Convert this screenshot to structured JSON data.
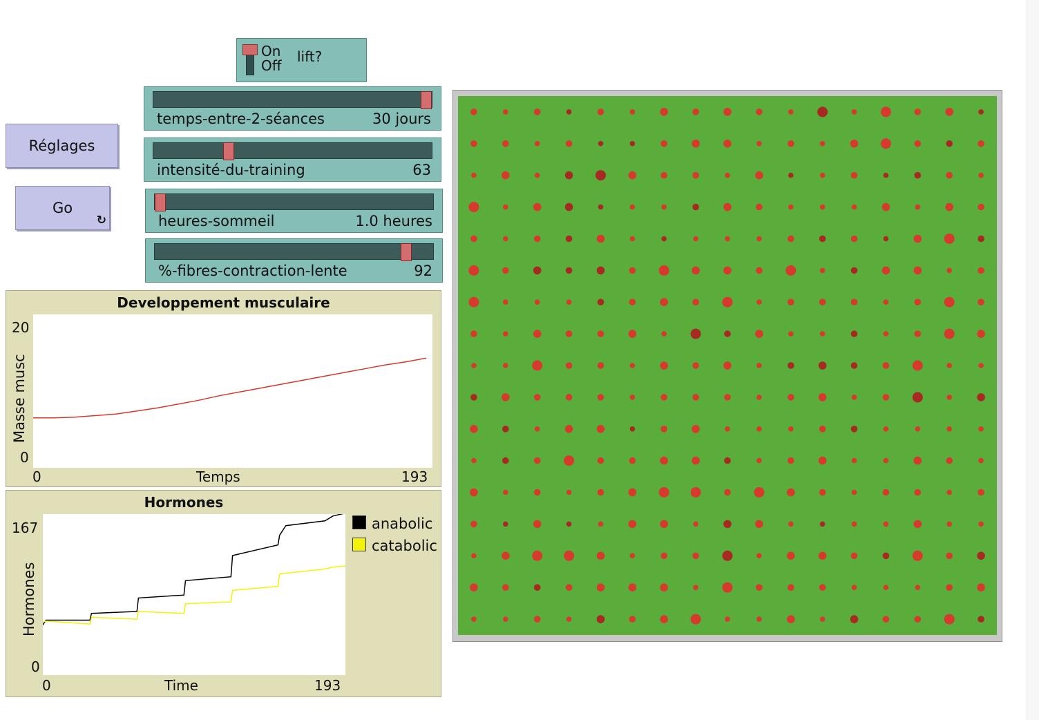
{
  "buttons": {
    "setup_label": "Réglages",
    "go_label": "Go",
    "forever_icon": "↻"
  },
  "switch": {
    "on_label": "On",
    "off_label": "Off",
    "label": "lift?",
    "state": "on"
  },
  "sliders": [
    {
      "name": "temps-entre-2-séances",
      "display": "30 jours",
      "position": 1.0
    },
    {
      "name": "intensité-du-training",
      "display": "63",
      "position": 0.26
    },
    {
      "name": "heures-sommeil",
      "display": "1.0 heures",
      "position": 0.0
    },
    {
      "name": "%-fibres-contraction-lente",
      "display": "92",
      "position": 0.92
    }
  ],
  "plots": {
    "muscle": {
      "title": "Developpement musculaire",
      "ylabel": "Masse musc",
      "xlabel": "Temps",
      "x_min": "0",
      "x_max": "193",
      "y_min": "0",
      "y_max": "20"
    },
    "hormones": {
      "title": "Hormones",
      "ylabel": "Hormones",
      "xlabel": "Time",
      "x_min": "0",
      "x_max": "193",
      "y_min": "0",
      "y_max": "167",
      "legend": [
        {
          "label": "anabolic",
          "color": "#000000"
        },
        {
          "label": "catabolic",
          "color": "#f2f20a"
        }
      ]
    }
  },
  "chart_data": [
    {
      "type": "line",
      "title": "Developpement musculaire",
      "xlabel": "Temps",
      "ylabel": "Masse musc",
      "xlim": [
        0,
        193
      ],
      "ylim": [
        0,
        20
      ],
      "series": [
        {
          "color": "#d33a2c",
          "x": [
            0,
            10,
            20,
            30,
            40,
            50,
            60,
            70,
            80,
            90,
            100,
            110,
            120,
            130,
            140,
            150,
            160,
            170,
            180,
            190
          ],
          "y": [
            6.5,
            6.5,
            6.6,
            6.8,
            7.0,
            7.4,
            7.8,
            8.3,
            8.8,
            9.4,
            9.9,
            10.4,
            10.9,
            11.4,
            11.9,
            12.4,
            12.9,
            13.4,
            13.8,
            14.3
          ]
        }
      ]
    },
    {
      "type": "line",
      "title": "Hormones",
      "xlabel": "Time",
      "ylabel": "Hormones",
      "xlim": [
        0,
        193
      ],
      "ylim": [
        0,
        167
      ],
      "series": [
        {
          "name": "anabolic",
          "color": "#000000",
          "x": [
            0,
            2,
            30,
            31,
            60,
            61,
            90,
            91,
            120,
            121,
            150,
            151,
            155,
            180,
            185,
            193
          ],
          "y": [
            52,
            57,
            57,
            64,
            66,
            80,
            83,
            98,
            102,
            124,
            135,
            145,
            155,
            160,
            165,
            168
          ]
        },
        {
          "name": "catabolic",
          "color": "#f2f20a",
          "x": [
            0,
            2,
            30,
            31,
            60,
            61,
            90,
            91,
            120,
            121,
            150,
            151,
            180,
            185,
            193
          ],
          "y": [
            55,
            56,
            53,
            60,
            58,
            66,
            64,
            74,
            76,
            88,
            92,
            105,
            110,
            112,
            113
          ]
        }
      ]
    }
  ]
}
